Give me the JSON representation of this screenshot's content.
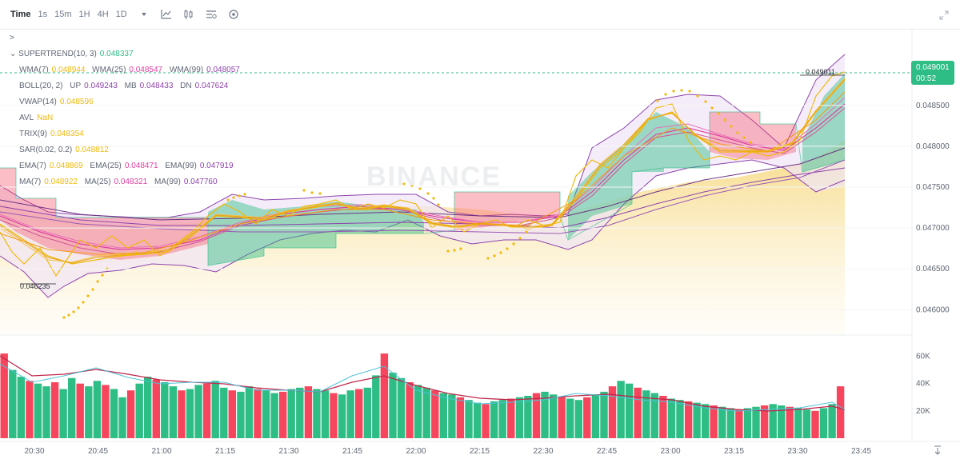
{
  "toolbar": {
    "time_label": "Time",
    "intervals": [
      "1s",
      "15m",
      "1H",
      "4H",
      "1D"
    ],
    "icons": [
      "chevron-down-icon",
      "line-chart-icon",
      "candle-settings-icon",
      "indicator-icon",
      "settings-icon"
    ]
  },
  "watermark": "BINANCE",
  "indicators": {
    "collapse_arrow": ">",
    "supertrend": {
      "label": "SUPERTREND(10, 3)",
      "value": "0.048337",
      "color": "#2ebd85"
    },
    "wma": {
      "label1": "WMA(7)",
      "v1": "0.048944",
      "label2": "WMA(25)",
      "v2": "0.048547",
      "label3": "WMA(99)",
      "v3": "0.048057"
    },
    "boll": {
      "label": "BOLL(20, 2)",
      "up_label": "UP",
      "up": "0.049243",
      "mb_label": "MB",
      "mb": "0.048433",
      "dn_label": "DN",
      "dn": "0.047624"
    },
    "vwap": {
      "label": "VWAP(14)",
      "value": "0.048596"
    },
    "avl": {
      "label": "AVL",
      "value": "NaN"
    },
    "trix": {
      "label": "TRIX(9)",
      "value": "0.048354"
    },
    "sar": {
      "label": "SAR(0.02, 0.2)",
      "value": "0.048812"
    },
    "ema": {
      "label1": "EMA(7)",
      "v1": "0.048869",
      "label2": "EMA(25)",
      "v2": "0.048471",
      "label3": "EMA(99)",
      "v3": "0.047919"
    },
    "ma": {
      "label1": "MA(7)",
      "v1": "0.048922",
      "label2": "MA(25)",
      "v2": "0.048321",
      "label3": "MA(99)",
      "v3": "0.047760"
    },
    "colors": {
      "yellow": "#f0b90b",
      "pink": "#e040a0",
      "purple": "#8e44ad",
      "green": "#2ebd85",
      "red": "#f6465d"
    }
  },
  "price_tag": {
    "price": "0.049001",
    "countdown": "00:52"
  },
  "annotations": {
    "high": "0.049011",
    "low": "0.046235"
  },
  "chart_data": [
    {
      "type": "line",
      "title": "",
      "xlabel": "",
      "ylabel": "",
      "x_ticks": [
        "20:30",
        "20:45",
        "21:00",
        "21:15",
        "21:30",
        "21:45",
        "22:00",
        "22:15",
        "22:30",
        "22:45",
        "23:00",
        "23:15",
        "23:30",
        "23:45"
      ],
      "y_ticks": [
        "0.046000",
        "0.046500",
        "0.047000",
        "0.047500",
        "0.048000",
        "0.048500"
      ],
      "ylim": [
        0.0457,
        0.0493
      ],
      "series": [
        {
          "x": [
            "20:30",
            "20:45",
            "21:00",
            "21:15",
            "21:30",
            "21:45",
            "22:00",
            "22:15",
            "22:30",
            "22:45",
            "23:00",
            "23:15",
            "23:30",
            "23:42"
          ],
          "values": [
            0.0466,
            0.04665,
            0.04668,
            0.0469,
            0.04705,
            0.04725,
            0.04705,
            0.0469,
            0.04695,
            0.04805,
            0.04845,
            0.04815,
            0.0481,
            0.049
          ]
        }
      ],
      "grid": true
    },
    {
      "type": "bar",
      "title": "",
      "y_ticks": [
        "20K",
        "40K",
        "60K"
      ],
      "ylim": [
        0,
        72000
      ],
      "x_ticks": [
        "20:30",
        "20:45",
        "21:00",
        "21:15",
        "21:30",
        "21:45",
        "22:00",
        "22:15",
        "22:30",
        "22:45",
        "23:00",
        "23:15",
        "23:30",
        "23:45"
      ],
      "series": [
        {
          "values": [
            62000,
            50000,
            45000,
            42000,
            40000,
            38000,
            41000,
            36000,
            44000,
            40000,
            38000,
            42000,
            39000,
            36000,
            30000,
            35000,
            40000,
            45000,
            43000,
            41000,
            38000,
            35000,
            36000,
            39000,
            40000,
            42000,
            37000,
            35000,
            34000,
            38000,
            36000,
            35000,
            33000,
            34000,
            36000,
            37000,
            38000,
            36000,
            35000,
            33000,
            32000,
            35000,
            36000,
            37000,
            46000,
            62000,
            48000,
            44000,
            41000,
            39000,
            37000,
            35000,
            33000,
            32000,
            30000,
            28000,
            26000,
            25000,
            27000,
            28000,
            29000,
            30000,
            31000,
            33000,
            34000,
            32000,
            30000,
            29000,
            28000,
            30000,
            32000,
            34000,
            38000,
            42000,
            40000,
            37000,
            35000,
            33000,
            31000,
            29000,
            28000,
            27000,
            26000,
            25000,
            24000,
            23000,
            22000,
            21000,
            22000,
            23000,
            24000,
            25000,
            24000,
            23000,
            22000,
            21000,
            20000,
            22000,
            25000,
            38000
          ]
        }
      ]
    }
  ]
}
